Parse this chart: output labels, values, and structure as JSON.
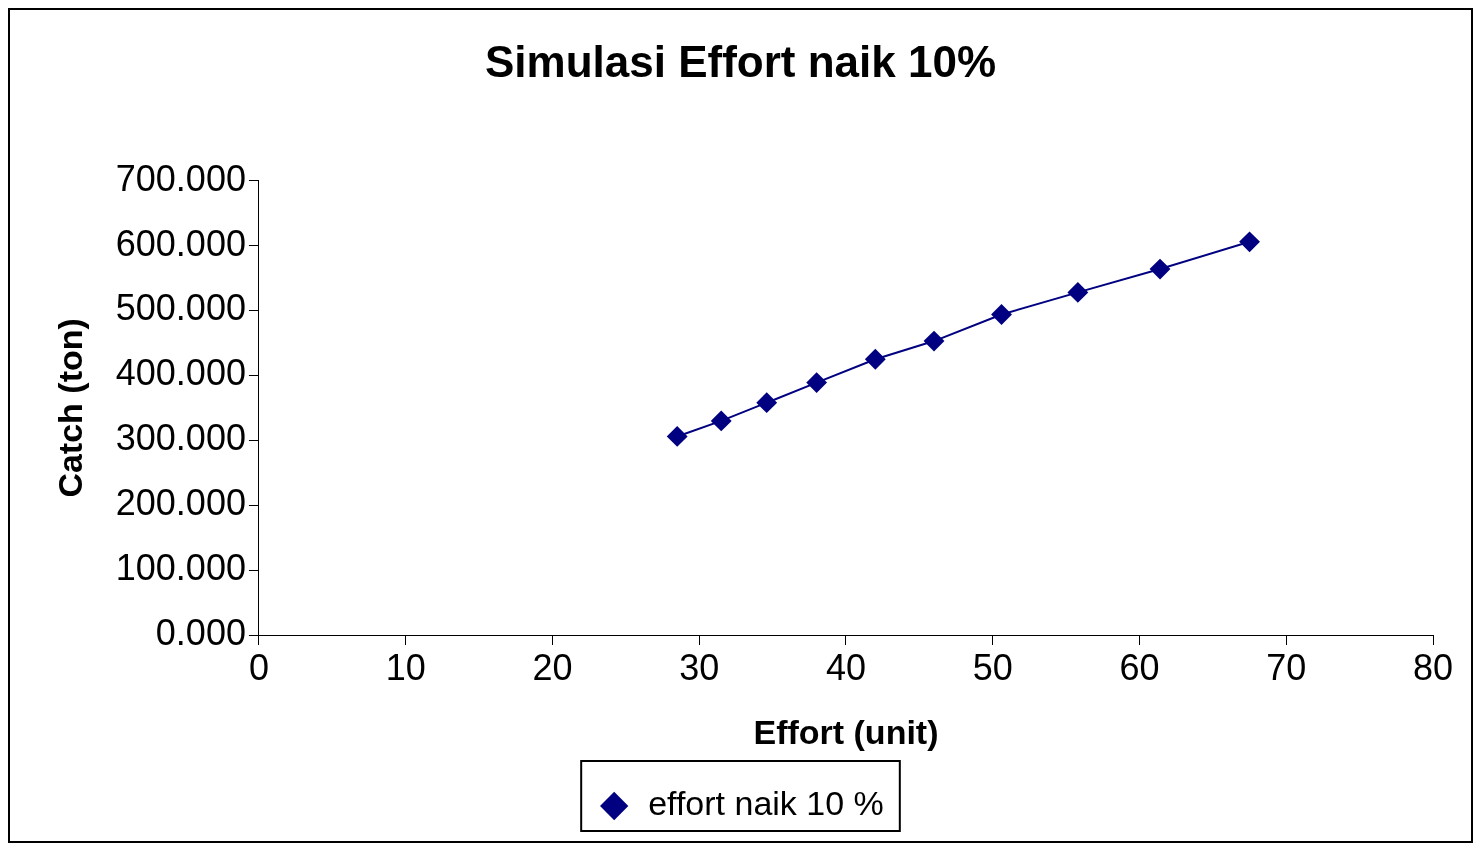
{
  "chart_data": {
    "type": "line",
    "title": "Simulasi Effort naik 10%",
    "xlabel": "Effort (unit)",
    "ylabel": "Catch (ton)",
    "xlim": [
      0,
      80
    ],
    "xticks": [
      0,
      10,
      20,
      30,
      40,
      50,
      60,
      70,
      80
    ],
    "ylim": [
      0,
      700
    ],
    "yticks": [
      {
        "value": 0,
        "label": "0.000"
      },
      {
        "value": 100,
        "label": "100.000"
      },
      {
        "value": 200,
        "label": "200.000"
      },
      {
        "value": 300,
        "label": "300.000"
      },
      {
        "value": 400,
        "label": "400.000"
      },
      {
        "value": 500,
        "label": "500.000"
      },
      {
        "value": 600,
        "label": "600.000"
      },
      {
        "value": 700,
        "label": "700.000"
      }
    ],
    "series": [
      {
        "name": "effort naik 10 %",
        "color": "#000080",
        "x": [
          28.5,
          31.5,
          34.6,
          38.0,
          42.0,
          46.0,
          50.6,
          55.8,
          61.4,
          67.5
        ],
        "values": [
          306,
          330,
          358,
          389,
          425,
          453,
          494,
          528,
          564,
          606
        ]
      }
    ],
    "marker": "diamond",
    "line_style": "solid",
    "grid": false,
    "legend": "bottom"
  }
}
